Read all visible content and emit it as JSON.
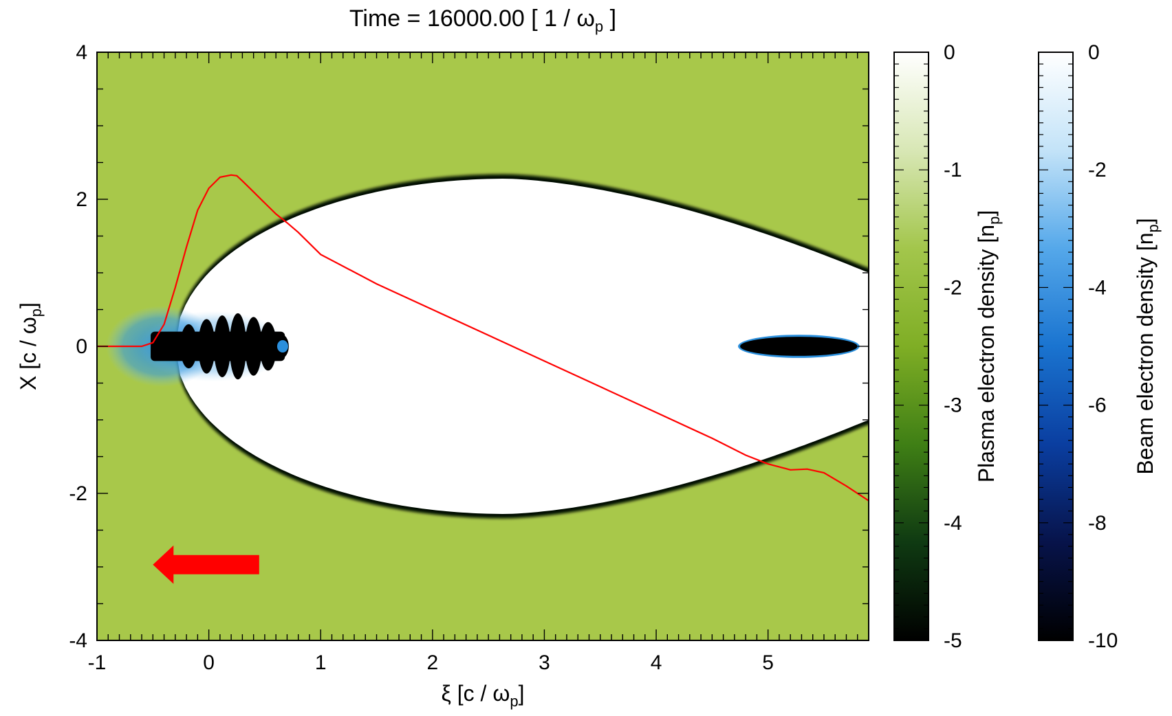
{
  "chart_data": {
    "type": "heatmap",
    "title": "Time = 16000.00 [ 1 / ω",
    "title_sub": "p",
    "title_end": " ]",
    "xlabel": "ξ [c / ω",
    "xlabel_sub": "p",
    "xlabel_end": "]",
    "ylabel": "X [c / ω",
    "ylabel_sub": "p",
    "ylabel_end": "]",
    "xlim": [
      -1,
      5.9
    ],
    "ylim": [
      -4,
      4
    ],
    "x_ticks": [
      -1,
      0,
      1,
      2,
      3,
      4,
      5
    ],
    "x_tick_labels": [
      "-1",
      "0",
      "1",
      "2",
      "3",
      "4",
      "5"
    ],
    "y_ticks": [
      -4,
      -2,
      0,
      2,
      4
    ],
    "y_tick_labels": [
      "-4",
      "-2",
      "0",
      "2",
      "4"
    ],
    "colors": {
      "plasma_background": "#a8c84a",
      "bubble": "#ffffff",
      "sheath": "#061006",
      "beam_core": "#000000",
      "beam_halo": "#2b8fdc",
      "line": "#ff0000",
      "arrow": "#ff0000"
    },
    "bubble": {
      "front_x": -0.3,
      "max_half_width": 2.28,
      "max_at_x": 2.65,
      "rear_x": 5.9,
      "rear_half_width": 1.0
    },
    "beams": [
      {
        "name": "",
        "x_start": -0.6,
        "x_end": 0.68,
        "centers": [
          -0.18,
          -0.02,
          0.12,
          0.26,
          0.4,
          0.53,
          0.64
        ],
        "half_widths": [
          0.3,
          0.37,
          0.42,
          0.45,
          0.4,
          0.33,
          0.17
        ]
      },
      {
        "name": "",
        "x_start": 4.75,
        "x_end": 5.8,
        "half_width": 0.13
      }
    ],
    "line_series": {
      "name": "",
      "x": [
        -1.0,
        -0.6,
        -0.5,
        -0.4,
        -0.3,
        -0.2,
        -0.1,
        0.0,
        0.1,
        0.2,
        0.25,
        0.3,
        0.4,
        0.5,
        0.6,
        0.7,
        0.8,
        1.0,
        1.5,
        2.0,
        2.5,
        3.0,
        3.5,
        4.0,
        4.5,
        4.8,
        5.0,
        5.2,
        5.35,
        5.5,
        5.7,
        5.9
      ],
      "y": [
        0.0,
        0.0,
        0.05,
        0.3,
        0.8,
        1.35,
        1.85,
        2.15,
        2.3,
        2.33,
        2.32,
        2.25,
        2.1,
        1.95,
        1.8,
        1.68,
        1.55,
        1.25,
        0.85,
        0.5,
        0.15,
        -0.2,
        -0.55,
        -0.9,
        -1.25,
        -1.48,
        -1.6,
        -1.68,
        -1.67,
        -1.72,
        -1.9,
        -2.1
      ]
    },
    "direction_arrow": {
      "x_tail": 0.45,
      "x_head": -0.5,
      "y": -2.97
    },
    "colorbars": [
      {
        "label": "Plasma electron density [n",
        "label_sub": "p",
        "label_end": "]",
        "range": [
          -5,
          0
        ],
        "ticks": [
          0,
          -1,
          -2,
          -3,
          -4,
          -5
        ],
        "tick_labels": [
          "0",
          "-1",
          "-2",
          "-3",
          "-4",
          "-5"
        ],
        "gradient": [
          "#000000",
          "#0f3a12",
          "#3f7f15",
          "#7fae25",
          "#a3c64c",
          "#d8e7b5",
          "#ffffff"
        ]
      },
      {
        "label": "Beam electron density [n",
        "label_sub": "p",
        "label_end": "]",
        "range": [
          -10,
          0
        ],
        "ticks": [
          0,
          -2,
          -4,
          -6,
          -8,
          -10
        ],
        "tick_labels": [
          "0",
          "-2",
          "-4",
          "-6",
          "-8",
          "-10"
        ],
        "gradient": [
          "#000000",
          "#07134a",
          "#0a3ea0",
          "#1a74d0",
          "#55a8ea",
          "#c3e3f8",
          "#ffffff"
        ]
      }
    ]
  }
}
